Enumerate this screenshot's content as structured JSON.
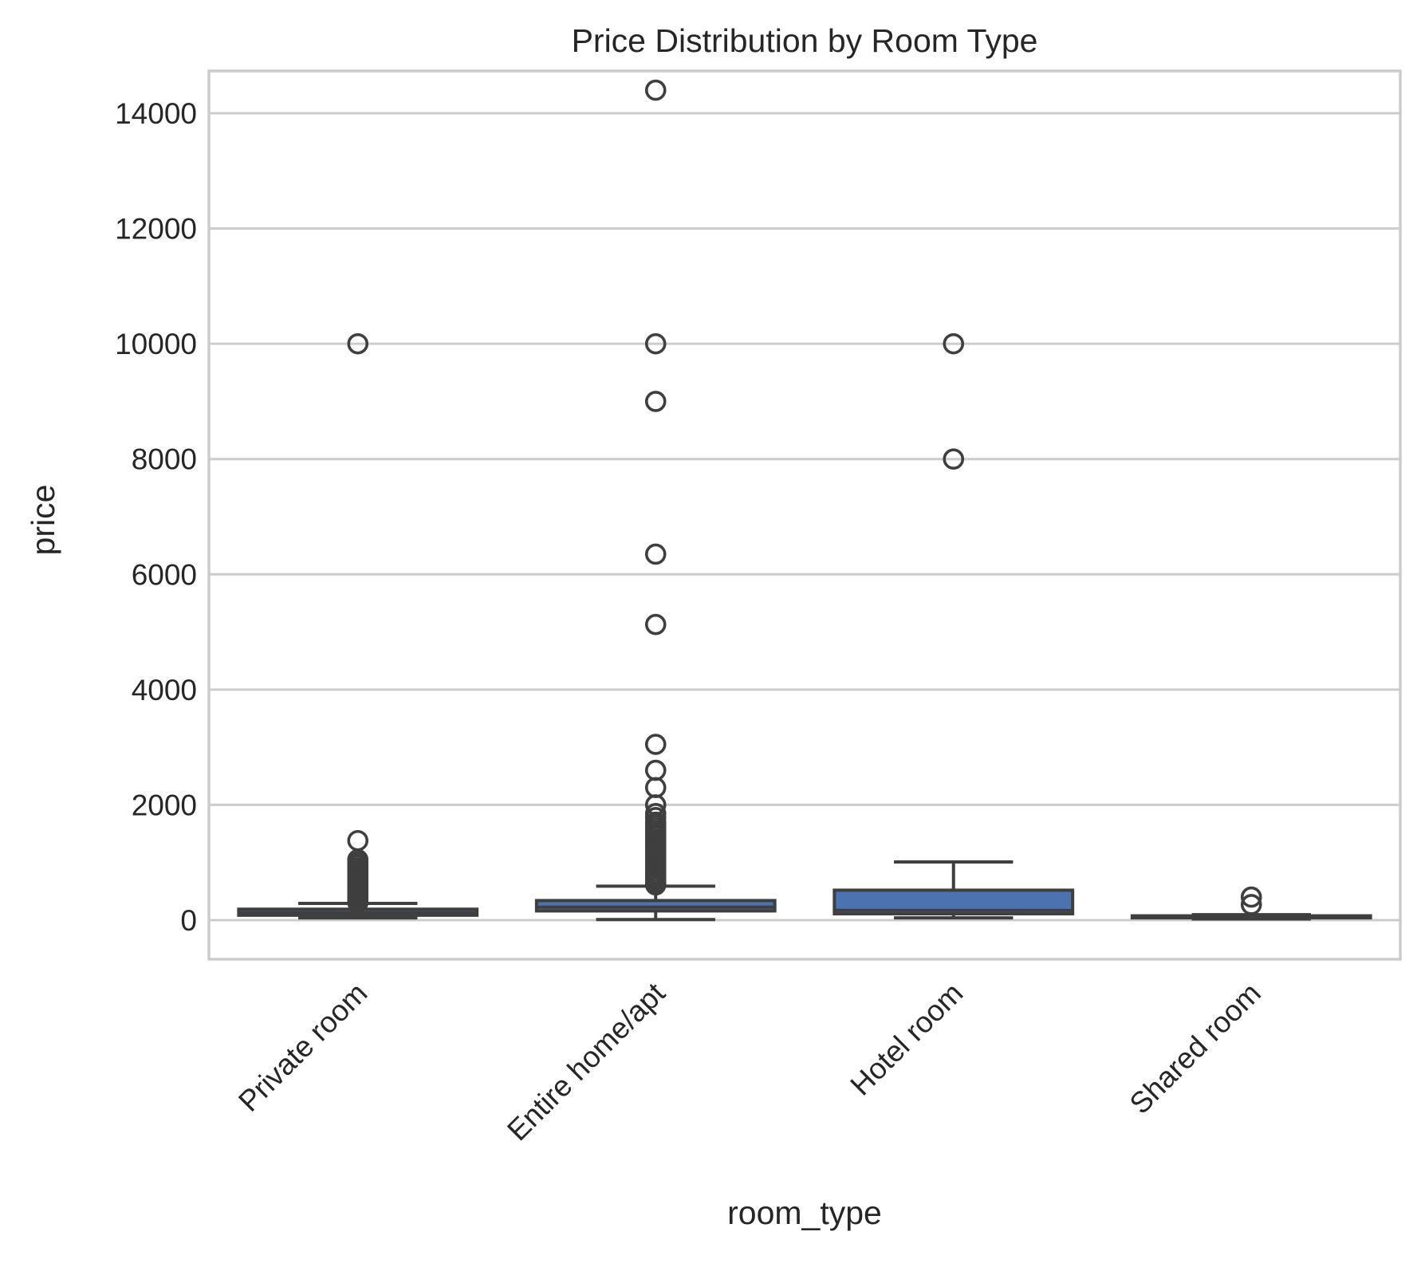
{
  "chart_data": {
    "type": "box",
    "title": "Price Distribution by Room Type",
    "xlabel": "room_type",
    "ylabel": "price",
    "ylim": [
      -700,
      15200
    ],
    "yticks": [
      0,
      2000,
      4000,
      6000,
      8000,
      10000,
      12000,
      14000
    ],
    "ytick_labels": [
      "0",
      "2000",
      "4000",
      "6000",
      "8000",
      "10000",
      "12000",
      "14000"
    ],
    "grid": "horizontal",
    "box_color": "#4c72b0",
    "line_color": "#3f3f3f",
    "categories": [
      "Private room",
      "Entire home/apt",
      "Hotel room",
      "Shared room"
    ],
    "boxes": [
      {
        "category": "Private room",
        "whislo": 40,
        "q1": 85,
        "median": 130,
        "q3": 190,
        "whishi": 290,
        "outliers": [
          10000,
          1380,
          1050,
          1000,
          980,
          950,
          900,
          870,
          850,
          820,
          800,
          760,
          730,
          700,
          680,
          650,
          620,
          600,
          580,
          560,
          540,
          520,
          500,
          480,
          460,
          440,
          420,
          400,
          380,
          360,
          340,
          320,
          305
        ]
      },
      {
        "category": "Entire home/apt",
        "whislo": 10,
        "q1": 160,
        "median": 225,
        "q3": 340,
        "whishi": 590,
        "outliers": [
          14400,
          10000,
          9000,
          6350,
          5130,
          3050,
          2600,
          2300,
          2000,
          1850,
          1780,
          1700,
          1650,
          1600,
          1550,
          1500,
          1450,
          1400,
          1350,
          1300,
          1250,
          1200,
          1150,
          1100,
          1050,
          1000,
          950,
          900,
          850,
          800,
          760,
          720,
          690,
          660,
          630,
          610
        ]
      },
      {
        "category": "Hotel room",
        "whislo": 40,
        "q1": 110,
        "median": 170,
        "q3": 520,
        "whishi": 1010,
        "outliers": [
          10000,
          8000
        ]
      },
      {
        "category": "Shared room",
        "whislo": 20,
        "q1": 40,
        "median": 60,
        "q3": 75,
        "whishi": 95,
        "outliers": [
          400,
          270
        ]
      }
    ]
  }
}
